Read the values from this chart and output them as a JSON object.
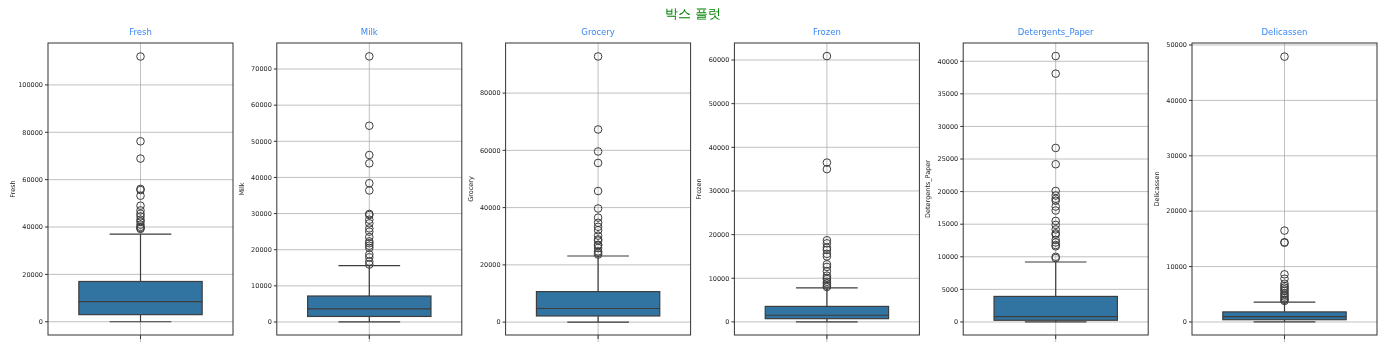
{
  "chart_data": [
    {
      "type": "box",
      "title": "Fresh",
      "ylabel": "Fresh",
      "annotations": [
        "박스 플럿"
      ],
      "categories": [
        null
      ],
      "ylim": [
        -5600,
        117700
      ],
      "yticks": [
        0,
        20000,
        40000,
        60000,
        80000,
        100000
      ],
      "grid": true,
      "series": [
        {
          "color": "#3274a1",
          "boxes": [
            {
              "low": 3,
              "q1": 3000,
              "median": 8500,
              "q3": 17000,
              "high": 37000,
              "outliers": [
                112000,
                76200,
                68900,
                56100,
                55600,
                53200,
                49000,
                47000,
                45600,
                44500,
                43100,
                42300,
                41000,
                40100,
                39600,
                39200
              ]
            }
          ]
        }
      ]
    },
    {
      "type": "box",
      "title": "Milk",
      "ylabel": "Milk",
      "categories": [
        null
      ],
      "ylim": [
        -3600,
        77200
      ],
      "yticks": [
        0,
        10000,
        20000,
        30000,
        40000,
        50000,
        60000,
        70000
      ],
      "grid": true,
      "series": [
        {
          "color": "#3274a1",
          "boxes": [
            {
              "low": 55,
              "q1": 1530,
              "median": 3630,
              "q3": 7190,
              "high": 15600,
              "outliers": [
                73500,
                54300,
                46200,
                43900,
                38400,
                36400,
                29900,
                29600,
                28300,
                27300,
                25900,
                25000,
                23500,
                22300,
                21800,
                21100,
                20500,
                18700,
                17900,
                16700,
                15900
              ]
            }
          ]
        }
      ]
    },
    {
      "type": "box",
      "title": "Grocery",
      "ylabel": "Grocery",
      "categories": [
        null
      ],
      "ylim": [
        -4500,
        97500
      ],
      "yticks": [
        0,
        20000,
        40000,
        60000,
        80000
      ],
      "grid": true,
      "series": [
        {
          "color": "#3274a1",
          "boxes": [
            {
              "low": 3,
              "q1": 2150,
              "median": 4760,
              "q3": 10660,
              "high": 23100,
              "outliers": [
                92800,
                67300,
                59600,
                55600,
                45800,
                39700,
                36500,
                34700,
                33300,
                32100,
                30200,
                28900,
                28500,
                27000,
                26900,
                25900,
                24700,
                24200,
                23600
              ]
            }
          ]
        }
      ]
    },
    {
      "type": "box",
      "title": "Frozen",
      "ylabel": "Frozen",
      "categories": [
        null
      ],
      "ylim": [
        -3000,
        63900
      ],
      "yticks": [
        0,
        10000,
        20000,
        30000,
        40000,
        50000,
        60000
      ],
      "grid": true,
      "series": [
        {
          "color": "#3274a1",
          "boxes": [
            {
              "low": 25,
              "q1": 740,
              "median": 1530,
              "q3": 3550,
              "high": 7800,
              "outliers": [
                60900,
                36500,
                35000,
                18700,
                18000,
                17000,
                16500,
                15600,
                15000,
                13200,
                12600,
                11600,
                10600,
                10100,
                9800,
                9200,
                8800,
                8300,
                8000
              ]
            }
          ]
        }
      ]
    },
    {
      "type": "box",
      "title": "Detergents_Paper",
      "ylabel": "Detergents_Paper",
      "categories": [
        null
      ],
      "ylim": [
        -2000,
        42800
      ],
      "yticks": [
        0,
        5000,
        10000,
        15000,
        20000,
        25000,
        30000,
        35000,
        40000
      ],
      "grid": true,
      "series": [
        {
          "color": "#3274a1",
          "boxes": [
            {
              "low": 3,
              "q1": 260,
              "median": 816,
              "q3": 3920,
              "high": 9200,
              "outliers": [
                40800,
                38100,
                26700,
                24200,
                20100,
                19400,
                18900,
                18600,
                17700,
                17100,
                15500,
                14900,
                14200,
                13600,
                13400,
                12600,
                12200,
                11800,
                11600,
                10000,
                9800
              ]
            }
          ]
        }
      ]
    },
    {
      "type": "box",
      "title": "Delicassen",
      "ylabel": "Delicassen",
      "categories": [
        null
      ],
      "ylim": [
        -2350,
        50360
      ],
      "yticks": [
        0,
        10000,
        20000,
        30000,
        40000,
        50000
      ],
      "grid": true,
      "series": [
        {
          "color": "#3274a1",
          "boxes": [
            {
              "low": 3,
              "q1": 410,
              "median": 966,
              "q3": 1820,
              "high": 3600,
              "outliers": [
                47900,
                16500,
                14400,
                14300,
                8600,
                7800,
                6900,
                6500,
                6200,
                5900,
                5600,
                5200,
                4900,
                4600,
                4300,
                4000,
                3800
              ]
            }
          ]
        }
      ]
    }
  ]
}
